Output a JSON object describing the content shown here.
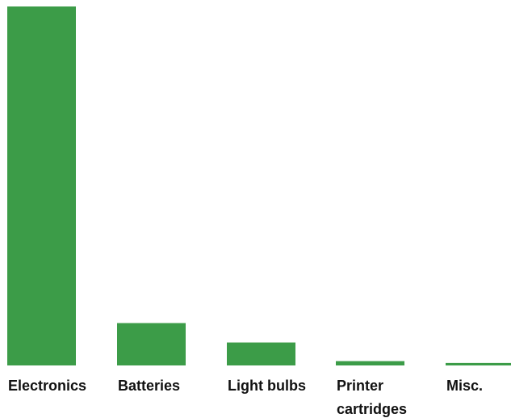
{
  "chart_data": {
    "type": "bar",
    "categories": [
      [
        "Electronics"
      ],
      [
        "Batteries"
      ],
      [
        "Light bulbs"
      ],
      [
        "Printer",
        "cartridges"
      ],
      [
        "Misc."
      ]
    ],
    "values": [
      100,
      11.8,
      6.4,
      1.2,
      0.7
    ],
    "ylim": [
      0,
      100
    ],
    "grid": false,
    "legend": "none",
    "colors": {
      "bar": "#3c9c48",
      "label": "#111111"
    }
  }
}
